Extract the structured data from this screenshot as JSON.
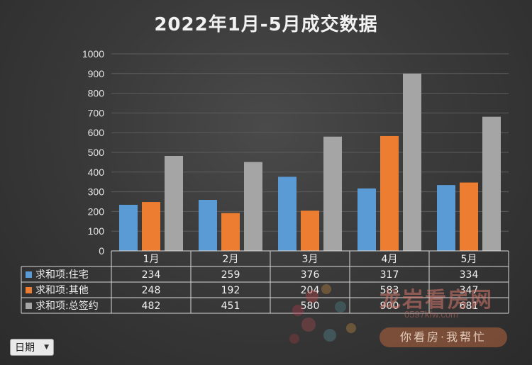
{
  "chart_data": {
    "type": "bar",
    "title": "2022年1月-5月成交数据",
    "categories": [
      "1月",
      "2月",
      "3月",
      "4月",
      "5月"
    ],
    "series": [
      {
        "name": "求和项:住宅",
        "color": "#5b9bd5",
        "values": [
          234,
          259,
          376,
          317,
          334
        ]
      },
      {
        "name": "求和项:其他",
        "color": "#ed7d31",
        "values": [
          248,
          192,
          204,
          583,
          347
        ]
      },
      {
        "name": "求和项:总签约",
        "color": "#a5a5a5",
        "values": [
          482,
          451,
          580,
          900,
          681
        ]
      }
    ],
    "ylim": [
      0,
      1000
    ],
    "yticks": [
      0,
      100,
      200,
      300,
      400,
      500,
      600,
      700,
      800,
      900,
      1000
    ],
    "grid": true,
    "legend": "data-table"
  },
  "filter": {
    "label": "日期",
    "icon": "dropdown-arrow-icon"
  },
  "watermark": {
    "brand": "龙岩看房网",
    "url": "0597kfw.com",
    "slogan": "你看房·我帮忙"
  }
}
